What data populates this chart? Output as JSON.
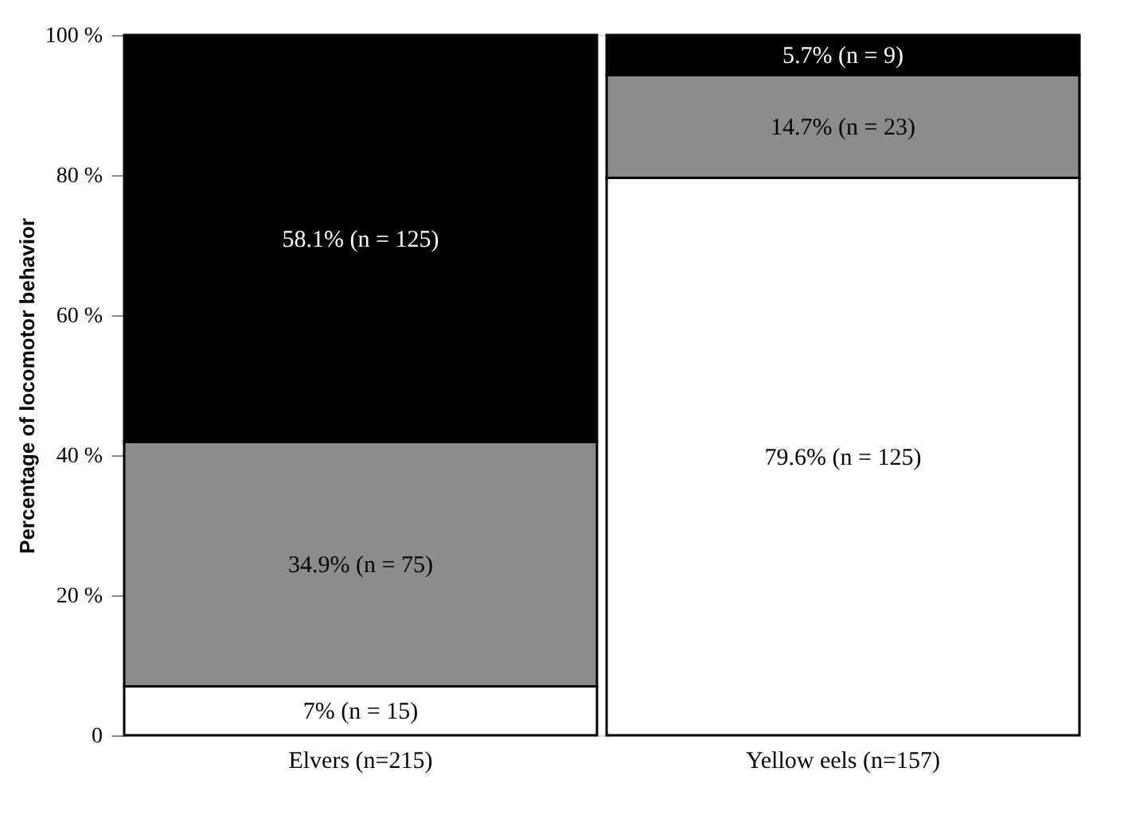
{
  "chart_data": {
    "type": "bar",
    "stacked": true,
    "ylabel": "Percentage of locomotor behavior",
    "categories": [
      "Elvers (n=215)",
      "Yellow eels (n=157)"
    ],
    "series": [
      {
        "color": "#ffffff",
        "values": [
          7,
          79.6
        ],
        "value_labels": [
          "7% (n = 15)",
          "79.6% (n = 125)"
        ]
      },
      {
        "color": "#8c8c8c",
        "values": [
          34.9,
          14.7
        ],
        "value_labels": [
          "34.9% (n = 75)",
          "14.7% (n = 23)"
        ]
      },
      {
        "color": "#000000",
        "values": [
          58.1,
          5.7
        ],
        "value_labels": [
          "58.1% (n = 125)",
          "5.7% (n = 9)"
        ]
      }
    ],
    "ylim": [
      0,
      100
    ],
    "yticks": [
      {
        "value": 0,
        "label": "0"
      },
      {
        "value": 20,
        "label": "20 %"
      },
      {
        "value": 40,
        "label": "40 %"
      },
      {
        "value": 60,
        "label": "60 %"
      },
      {
        "value": 80,
        "label": "80 %"
      },
      {
        "value": 100,
        "label": "100 %"
      }
    ],
    "grid": false
  }
}
